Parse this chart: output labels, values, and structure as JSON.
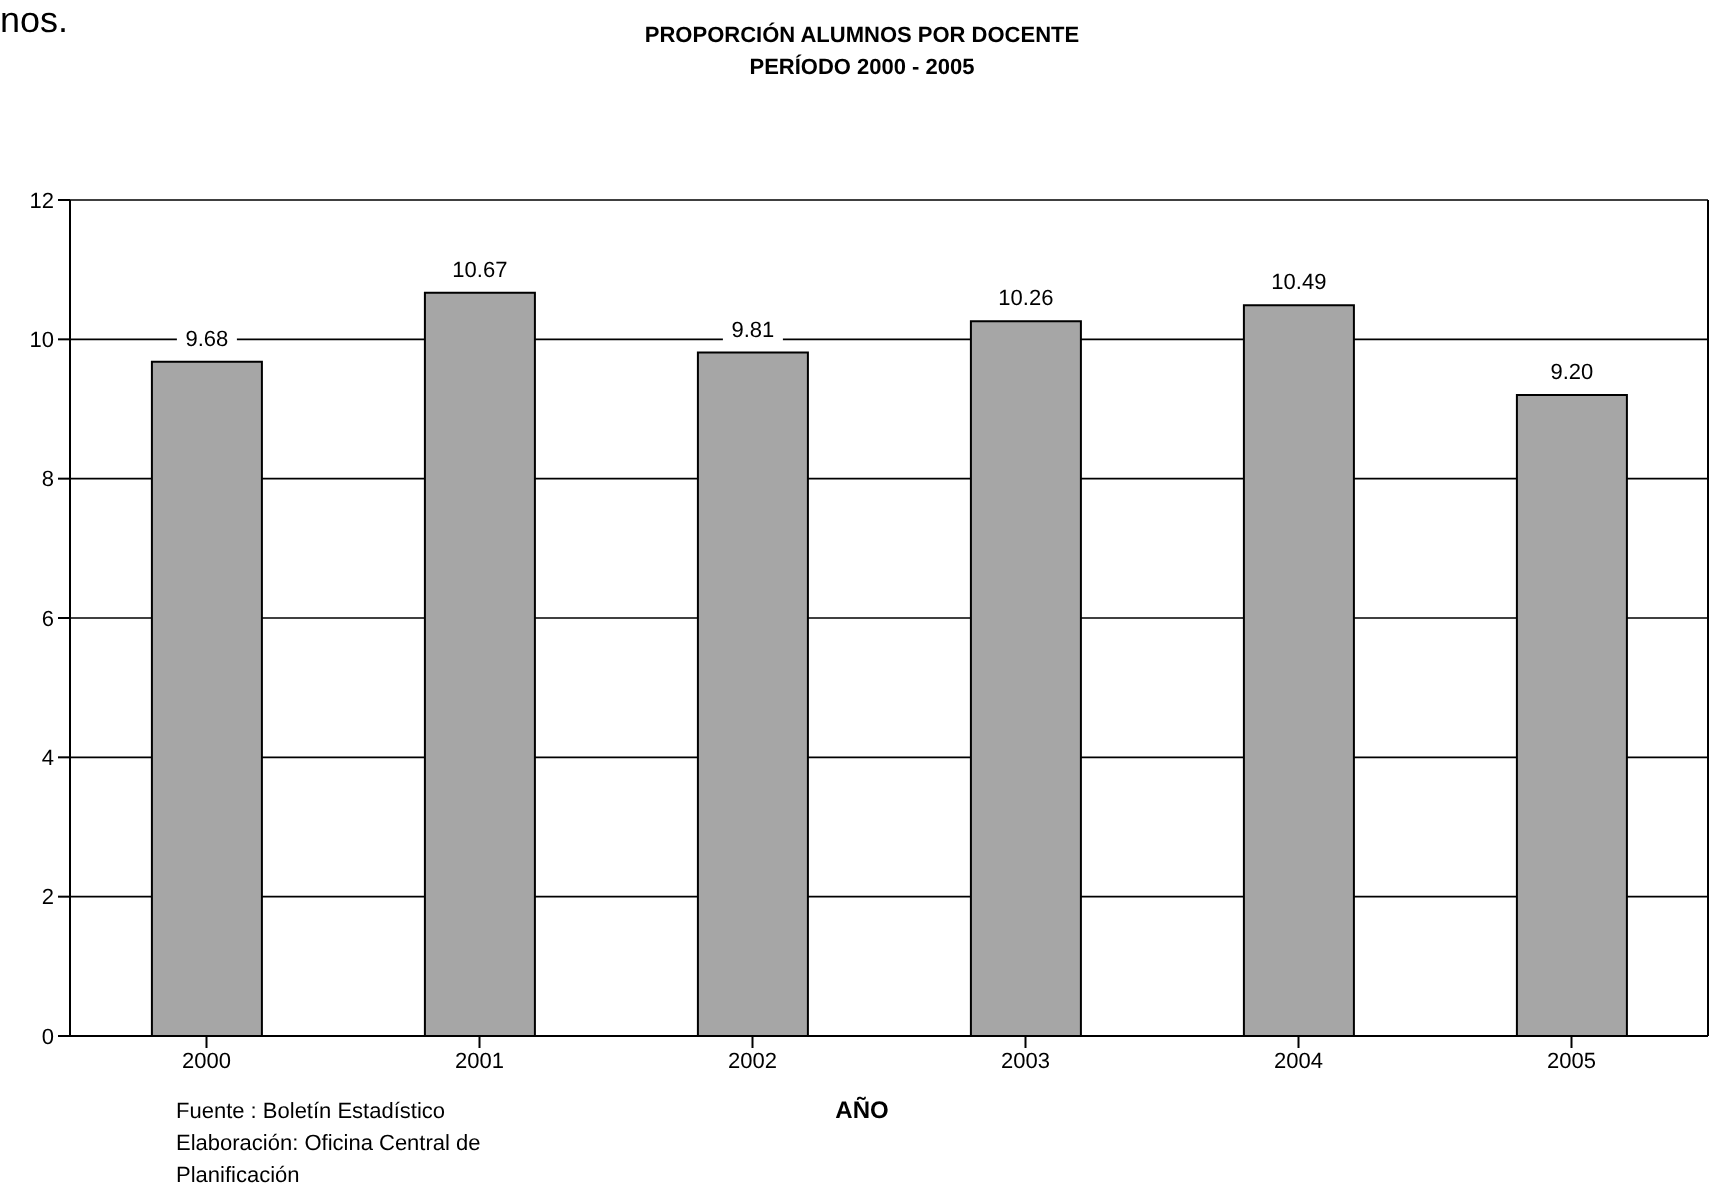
{
  "chart_data": {
    "type": "bar",
    "title": "PROPORCIÓN ALUMNOS POR DOCENTE\nPERÍODO 2000 - 2005",
    "xlabel": "AÑO",
    "categories": [
      "2000",
      "2001",
      "2002",
      "2003",
      "2004",
      "2005"
    ],
    "values": [
      9.68,
      10.67,
      9.81,
      10.26,
      10.49,
      9.2
    ],
    "value_labels": [
      "9.68",
      "10.67",
      "9.81",
      "10.26",
      "10.49",
      "9.20"
    ],
    "color": "#a6a6a6",
    "ylim": [
      0,
      12
    ],
    "yticks": [
      0,
      2,
      4,
      6,
      8,
      10,
      12
    ],
    "grid": "y",
    "legend": false,
    "annotations": [
      "nos.",
      "Fuente : Boletín Estadístico",
      "Elaboración: Oficina Central de Planificación"
    ]
  }
}
